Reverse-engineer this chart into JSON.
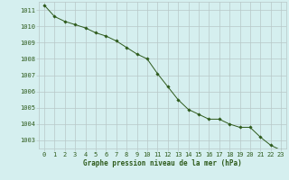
{
  "x": [
    0,
    1,
    2,
    3,
    4,
    5,
    6,
    7,
    8,
    9,
    10,
    11,
    12,
    13,
    14,
    15,
    16,
    17,
    18,
    19,
    20,
    21,
    22,
    23
  ],
  "y": [
    1011.3,
    1010.6,
    1010.3,
    1010.1,
    1009.9,
    1009.6,
    1009.4,
    1009.1,
    1008.7,
    1008.3,
    1008.0,
    1007.1,
    1006.3,
    1005.5,
    1004.9,
    1004.6,
    1004.3,
    1004.3,
    1004.0,
    1003.8,
    1003.8,
    1003.2,
    1002.7,
    1002.4
  ],
  "ylim": [
    1002.5,
    1011.5
  ],
  "yticks": [
    1003,
    1004,
    1005,
    1006,
    1007,
    1008,
    1009,
    1010,
    1011
  ],
  "xticks": [
    0,
    1,
    2,
    3,
    4,
    5,
    6,
    7,
    8,
    9,
    10,
    11,
    12,
    13,
    14,
    15,
    16,
    17,
    18,
    19,
    20,
    21,
    22,
    23
  ],
  "xlabel": "Graphe pression niveau de la mer (hPa)",
  "line_color": "#2d5a1b",
  "marker": "D",
  "marker_size": 1.8,
  "bg_color": "#d5efef",
  "grid_color": "#b8c8c8",
  "font_color": "#2d5a1b",
  "tick_fontsize": 5.0,
  "label_fontsize": 5.5
}
